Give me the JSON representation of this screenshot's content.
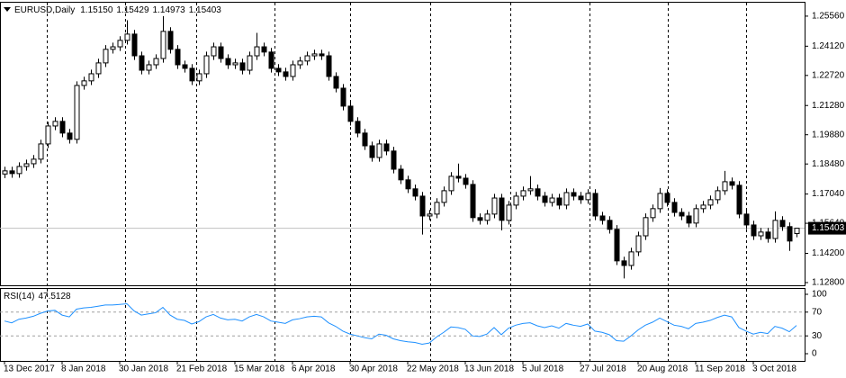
{
  "chart_data": [
    {
      "type": "candlestick",
      "title": "EURUSD,Daily",
      "header_labels": [
        "1.15150",
        "1.15429",
        "1.14973",
        "1.15403"
      ],
      "color": "#000000",
      "categories": [
        "13 Dec 2017",
        null,
        null,
        null,
        null,
        null,
        null,
        null,
        "8 Jan 2018",
        null,
        null,
        null,
        null,
        null,
        null,
        null,
        "30 Jan 2018",
        null,
        null,
        null,
        null,
        null,
        null,
        null,
        "21 Feb 2018",
        null,
        null,
        null,
        null,
        null,
        null,
        null,
        "15 Mar 2018",
        null,
        null,
        null,
        null,
        null,
        null,
        null,
        "6 Apr 2018",
        null,
        null,
        null,
        null,
        null,
        null,
        null,
        "30 Apr 2018",
        null,
        null,
        null,
        null,
        null,
        null,
        null,
        "22 May 2018",
        null,
        null,
        null,
        null,
        null,
        null,
        null,
        "13 Jun 2018",
        null,
        null,
        null,
        null,
        null,
        null,
        null,
        "5 Jul 2018",
        null,
        null,
        null,
        null,
        null,
        null,
        null,
        "27 Jul 2018",
        null,
        null,
        null,
        null,
        null,
        null,
        null,
        "20 Aug 2018",
        null,
        null,
        null,
        null,
        null,
        null,
        null,
        "11 Sep 2018",
        null,
        null,
        null,
        null,
        null,
        null,
        null,
        "3 Oct 2018",
        null,
        null,
        null,
        null,
        null,
        null
      ],
      "open": [
        1.18,
        1.1815,
        1.1802,
        1.1836,
        1.1849,
        1.1871,
        1.1944,
        1.203,
        1.2052,
        1.1996,
        1.1966,
        1.2224,
        1.2246,
        1.228,
        1.2332,
        1.2397,
        1.2409,
        1.244,
        1.247,
        1.2366,
        1.2297,
        1.2323,
        1.2353,
        1.2483,
        1.2397,
        1.2323,
        1.2306,
        1.2246,
        1.228,
        1.2366,
        1.2409,
        1.2353,
        1.2323,
        1.2332,
        1.2297,
        1.2366,
        1.2409,
        1.2384,
        1.2306,
        1.2289,
        1.2267,
        1.2323,
        1.2341,
        1.2366,
        1.2375,
        1.2366,
        1.2267,
        1.2211,
        1.2125,
        1.2052,
        1.1996,
        1.1935,
        1.1879,
        1.1944,
        1.191,
        1.1823,
        1.1772,
        1.1729,
        1.1694,
        1.1599,
        1.1608,
        1.1664,
        1.172,
        1.1789,
        1.178,
        1.175,
        1.1591,
        1.1578,
        1.1608,
        1.1685,
        1.1578,
        1.1651,
        1.1694,
        1.172,
        1.1729,
        1.1694,
        1.1664,
        1.1685,
        1.1651,
        1.1711,
        1.1694,
        1.1677,
        1.1707,
        1.1599,
        1.1578,
        1.1535,
        1.1384,
        1.1362,
        1.1427,
        1.1504,
        1.1591,
        1.1634,
        1.1707,
        1.1664,
        1.1616,
        1.1599,
        1.1565,
        1.1634,
        1.1651,
        1.1677,
        1.172,
        1.1763,
        1.1746,
        1.1608,
        1.1556,
        1.1504,
        1.1522,
        1.1491,
        1.1578,
        1.1548,
        1.1515
      ],
      "high": [
        1.1835,
        1.1835,
        1.1856,
        1.1869,
        1.1891,
        1.1964,
        1.205,
        1.2072,
        1.2072,
        1.2016,
        1.2244,
        1.2266,
        1.23,
        1.2352,
        1.2417,
        1.2429,
        1.246,
        1.2536,
        1.249,
        1.2386,
        1.2343,
        1.2373,
        1.2556,
        1.2503,
        1.2417,
        1.2343,
        1.2326,
        1.23,
        1.2386,
        1.2429,
        1.2429,
        1.2373,
        1.2352,
        1.2352,
        1.2386,
        1.2476,
        1.2429,
        1.2404,
        1.2326,
        1.2309,
        1.2343,
        1.2361,
        1.2386,
        1.2395,
        1.2395,
        1.2386,
        1.2287,
        1.2231,
        1.2145,
        1.2072,
        1.2016,
        1.1955,
        1.1964,
        1.1964,
        1.193,
        1.1843,
        1.1792,
        1.1749,
        1.1714,
        1.1628,
        1.1684,
        1.174,
        1.1809,
        1.185,
        1.18,
        1.177,
        1.1611,
        1.1628,
        1.1705,
        1.1705,
        1.1671,
        1.1714,
        1.174,
        1.179,
        1.1749,
        1.1714,
        1.1705,
        1.1705,
        1.1731,
        1.1731,
        1.1714,
        1.1727,
        1.1727,
        1.1619,
        1.1598,
        1.1555,
        1.1404,
        1.1447,
        1.1524,
        1.1611,
        1.1654,
        1.1733,
        1.1727,
        1.1684,
        1.1636,
        1.1619,
        1.1654,
        1.1671,
        1.1697,
        1.174,
        1.1815,
        1.1783,
        1.1766,
        1.1628,
        1.1576,
        1.1542,
        1.1542,
        1.1621,
        1.1598,
        1.1568,
        1.15429
      ],
      "low": [
        1.178,
        1.1782,
        1.1782,
        1.1816,
        1.1829,
        1.1851,
        1.1924,
        1.201,
        1.1976,
        1.1946,
        1.1946,
        1.2204,
        1.2226,
        1.226,
        1.2312,
        1.2377,
        1.2389,
        1.242,
        1.2346,
        1.2277,
        1.2277,
        1.2303,
        1.2333,
        1.2377,
        1.2303,
        1.2286,
        1.2226,
        1.2226,
        1.226,
        1.2346,
        1.2333,
        1.2303,
        1.2303,
        1.2277,
        1.2277,
        1.2346,
        1.2364,
        1.2286,
        1.2269,
        1.2247,
        1.2247,
        1.2303,
        1.2321,
        1.2346,
        1.2346,
        1.2247,
        1.2191,
        1.2105,
        1.2032,
        1.1976,
        1.1915,
        1.1859,
        1.1859,
        1.189,
        1.1803,
        1.1752,
        1.1709,
        1.1674,
        1.151,
        1.1579,
        1.1588,
        1.1644,
        1.17,
        1.176,
        1.173,
        1.1571,
        1.1558,
        1.1558,
        1.1588,
        1.153,
        1.1558,
        1.1631,
        1.1674,
        1.17,
        1.1674,
        1.1644,
        1.1644,
        1.1631,
        1.1631,
        1.1674,
        1.1657,
        1.1657,
        1.1579,
        1.1558,
        1.1515,
        1.1364,
        1.13,
        1.1342,
        1.1407,
        1.1484,
        1.1571,
        1.1614,
        1.1644,
        1.1596,
        1.1579,
        1.1545,
        1.1545,
        1.1614,
        1.1631,
        1.1657,
        1.17,
        1.1726,
        1.1588,
        1.1536,
        1.1484,
        1.1484,
        1.1471,
        1.1471,
        1.1528,
        1.1432,
        1.14973
      ],
      "close": [
        1.1815,
        1.1802,
        1.1836,
        1.1849,
        1.1871,
        1.1944,
        1.203,
        1.2052,
        1.1996,
        1.1966,
        1.2224,
        1.2246,
        1.228,
        1.2332,
        1.2397,
        1.2409,
        1.244,
        1.247,
        1.2366,
        1.2297,
        1.2323,
        1.2353,
        1.2483,
        1.2397,
        1.2323,
        1.2306,
        1.2246,
        1.228,
        1.2366,
        1.2409,
        1.2353,
        1.2323,
        1.2332,
        1.2297,
        1.2366,
        1.2409,
        1.2384,
        1.2306,
        1.2289,
        1.2267,
        1.2323,
        1.2341,
        1.2366,
        1.2375,
        1.2366,
        1.2267,
        1.2211,
        1.2125,
        1.2052,
        1.1996,
        1.1935,
        1.1879,
        1.1944,
        1.191,
        1.1823,
        1.1772,
        1.1729,
        1.1694,
        1.1599,
        1.1608,
        1.1664,
        1.172,
        1.1789,
        1.178,
        1.175,
        1.1591,
        1.1578,
        1.1608,
        1.1685,
        1.1578,
        1.1651,
        1.1694,
        1.172,
        1.1729,
        1.1694,
        1.1664,
        1.1685,
        1.1651,
        1.1711,
        1.1694,
        1.1677,
        1.1707,
        1.1599,
        1.1578,
        1.1535,
        1.1384,
        1.1362,
        1.1427,
        1.1504,
        1.1591,
        1.1634,
        1.1707,
        1.1664,
        1.1616,
        1.1599,
        1.1565,
        1.1634,
        1.1651,
        1.1677,
        1.172,
        1.1763,
        1.1746,
        1.1608,
        1.1556,
        1.1504,
        1.1522,
        1.1491,
        1.1578,
        1.1548,
        1.1479,
        1.15403
      ],
      "ylim": [
        1.1267,
        1.2616
      ],
      "yticks": [
        {
          "value": 1.2556,
          "label": "1.25560"
        },
        {
          "value": 1.2412,
          "label": "1.24120"
        },
        {
          "value": 1.2272,
          "label": "1.22720"
        },
        {
          "value": 1.2128,
          "label": "1.21280"
        },
        {
          "value": 1.1988,
          "label": "1.19880"
        },
        {
          "value": 1.1848,
          "label": "1.18480"
        },
        {
          "value": 1.1704,
          "label": "1.17040"
        },
        {
          "value": 1.1564,
          "label": "1.15640"
        },
        {
          "value": 1.142,
          "label": "1.14200"
        },
        {
          "value": 1.128,
          "label": "1.12800"
        }
      ],
      "current_price": {
        "value": 1.15403,
        "label": "1.15403"
      }
    },
    {
      "type": "line",
      "title": "RSI(14)",
      "color": "#1e90ff",
      "values": [
        55,
        52,
        58,
        60,
        63,
        68,
        72,
        73,
        65,
        62,
        75,
        77,
        78,
        80,
        82,
        82,
        83,
        84,
        72,
        65,
        67,
        69,
        78,
        65,
        58,
        56,
        50,
        54,
        62,
        66,
        60,
        57,
        58,
        55,
        62,
        66,
        62,
        55,
        53,
        51,
        57,
        59,
        62,
        63,
        62,
        52,
        46,
        38,
        33,
        30,
        27,
        25,
        33,
        31,
        25,
        22,
        20,
        19,
        16,
        18,
        28,
        36,
        45,
        44,
        41,
        30,
        29,
        33,
        44,
        32,
        43,
        48,
        51,
        52,
        47,
        44,
        47,
        43,
        51,
        48,
        46,
        50,
        38,
        36,
        32,
        22,
        21,
        30,
        40,
        48,
        53,
        60,
        54,
        48,
        46,
        42,
        51,
        53,
        56,
        61,
        65,
        62,
        44,
        38,
        33,
        36,
        34,
        46,
        43,
        37,
        47.5128
      ],
      "ylim": [
        0,
        100
      ],
      "yticks": [
        0,
        30,
        70,
        100
      ],
      "levels": [
        30,
        70
      ]
    }
  ]
}
